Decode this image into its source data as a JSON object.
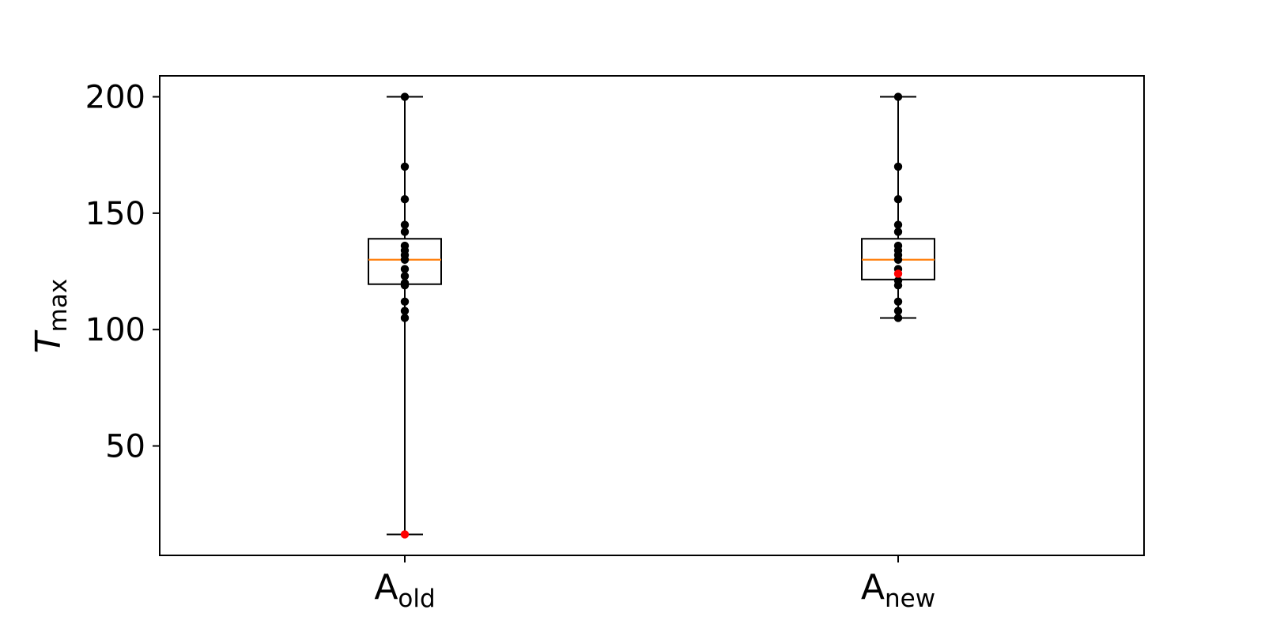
{
  "chart_data": {
    "type": "boxplot",
    "title": "",
    "xlabel": "",
    "ylabel": {
      "base": "T",
      "subscript": "max"
    },
    "ylim": [
      3,
      209
    ],
    "yticks": [
      50,
      100,
      150,
      200
    ],
    "categories": [
      {
        "base": "A",
        "subscript": "old"
      },
      {
        "base": "A",
        "subscript": "new"
      }
    ],
    "boxes": [
      {
        "whisker_low": 12,
        "q1": 119.5,
        "median": 130,
        "q3": 139,
        "whisker_high": 200,
        "points": [
          200,
          170,
          156,
          145,
          142,
          136,
          134,
          132,
          130,
          126,
          123,
          120,
          119,
          112,
          108,
          105
        ],
        "highlight_points": [
          12
        ]
      },
      {
        "whisker_low": 105,
        "q1": 121.5,
        "median": 130,
        "q3": 139,
        "whisker_high": 200,
        "points": [
          200,
          170,
          156,
          145,
          142,
          136,
          134,
          132,
          130,
          126,
          121,
          119,
          112,
          108,
          105
        ],
        "highlight_points": [
          124
        ]
      }
    ],
    "colors": {
      "box": "#000000",
      "median": "#ff7f0e",
      "points": "#000000",
      "highlight": "#ff0000"
    },
    "grid": false,
    "legend": "none"
  }
}
